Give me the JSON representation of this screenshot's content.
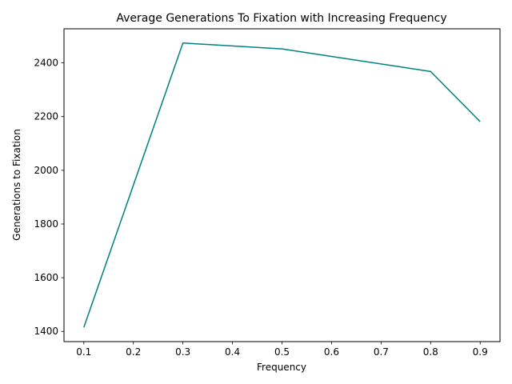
{
  "chart_data": {
    "type": "line",
    "title": "Average Generations To Fixation with Increasing Frequency",
    "xlabel": "Frequency",
    "ylabel": "Generations to Fixation",
    "x": [
      0.1,
      0.3,
      0.5,
      0.8,
      0.9
    ],
    "series": [
      {
        "name": "Generations to Fixation",
        "values": [
          1415,
          2474,
          2452,
          2368,
          2181
        ],
        "color": "#008080"
      }
    ],
    "xlim": [
      0.06,
      0.94
    ],
    "ylim": [
      1362,
      2527
    ],
    "xticks": [
      0.1,
      0.2,
      0.3,
      0.4,
      0.5,
      0.6,
      0.7,
      0.8,
      0.9
    ],
    "xtick_labels": [
      "0.1",
      "0.2",
      "0.3",
      "0.4",
      "0.5",
      "0.6",
      "0.7",
      "0.8",
      "0.9"
    ],
    "yticks": [
      1400,
      1600,
      1800,
      2000,
      2200,
      2400
    ],
    "ytick_labels": [
      "1400",
      "1600",
      "1800",
      "2000",
      "2200",
      "2400"
    ],
    "grid": false,
    "legend": false
  }
}
